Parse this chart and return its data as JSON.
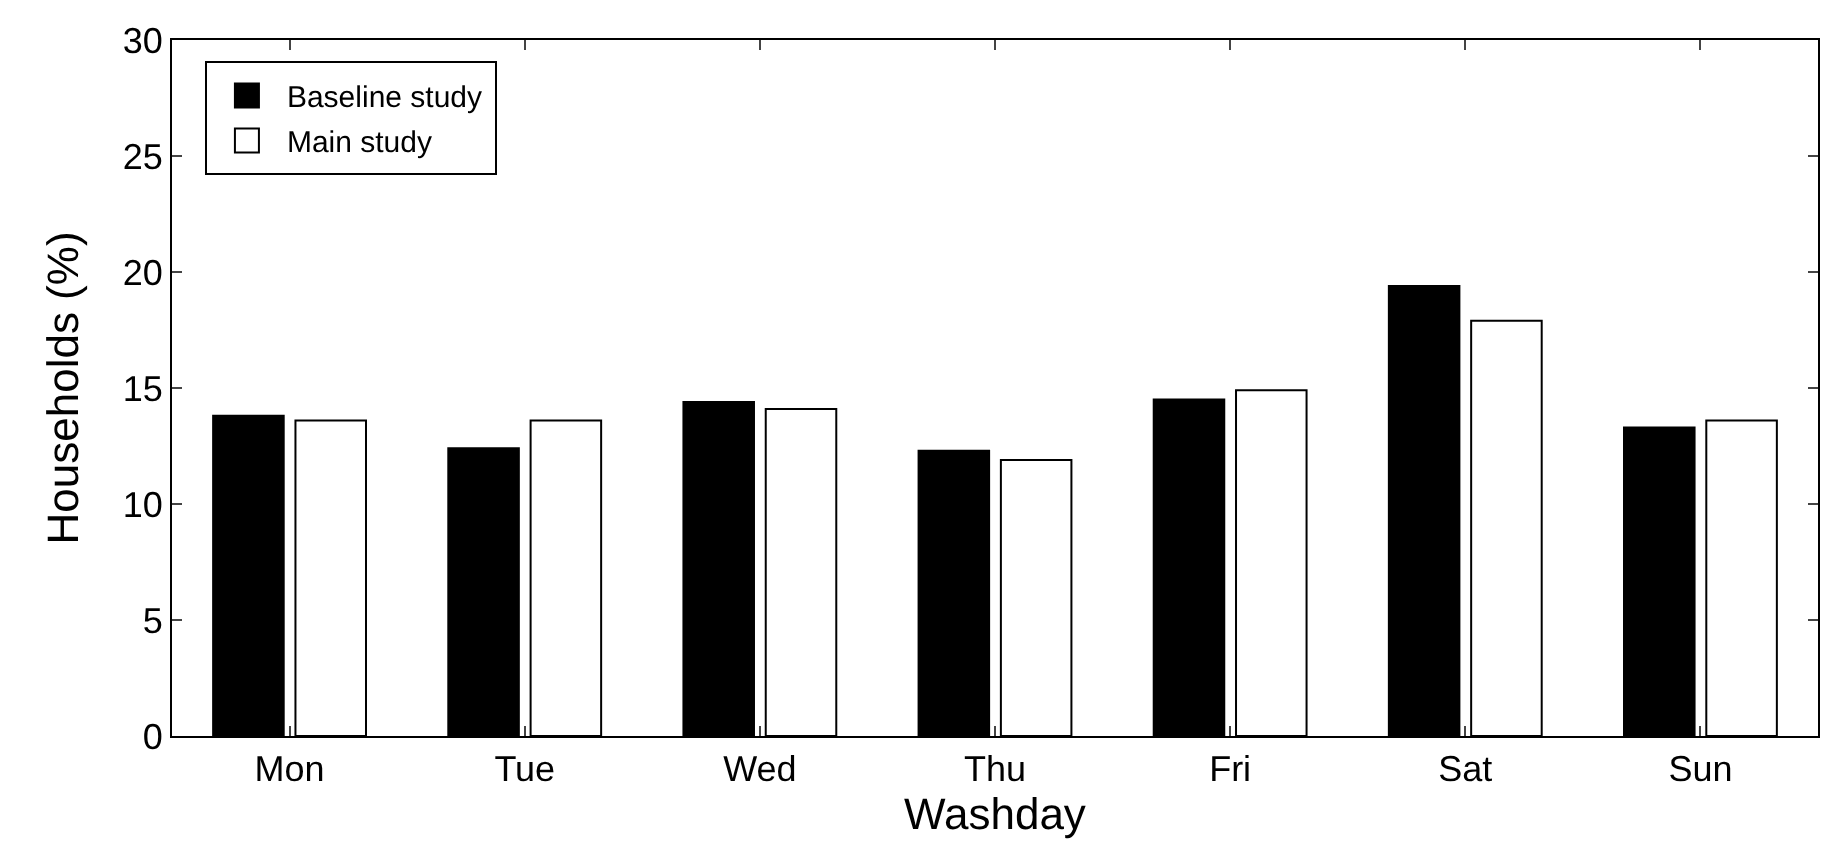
{
  "chart_data": {
    "type": "bar",
    "xlabel": "Washday",
    "ylabel": "Households (%)",
    "categories": [
      "Mon",
      "Tue",
      "Wed",
      "Thu",
      "Fri",
      "Sat",
      "Sun"
    ],
    "series": [
      {
        "name": "Baseline study",
        "color": "#000000",
        "values": [
          13.8,
          12.4,
          14.4,
          12.3,
          14.5,
          19.4,
          13.3
        ]
      },
      {
        "name": "Main study",
        "color": "#ffffff",
        "values": [
          13.6,
          13.6,
          14.1,
          11.9,
          14.9,
          17.9,
          13.6
        ]
      }
    ],
    "ylim": [
      0,
      30
    ],
    "yticks": [
      0,
      5,
      10,
      15,
      20,
      25,
      30
    ],
    "legend": "top left"
  }
}
